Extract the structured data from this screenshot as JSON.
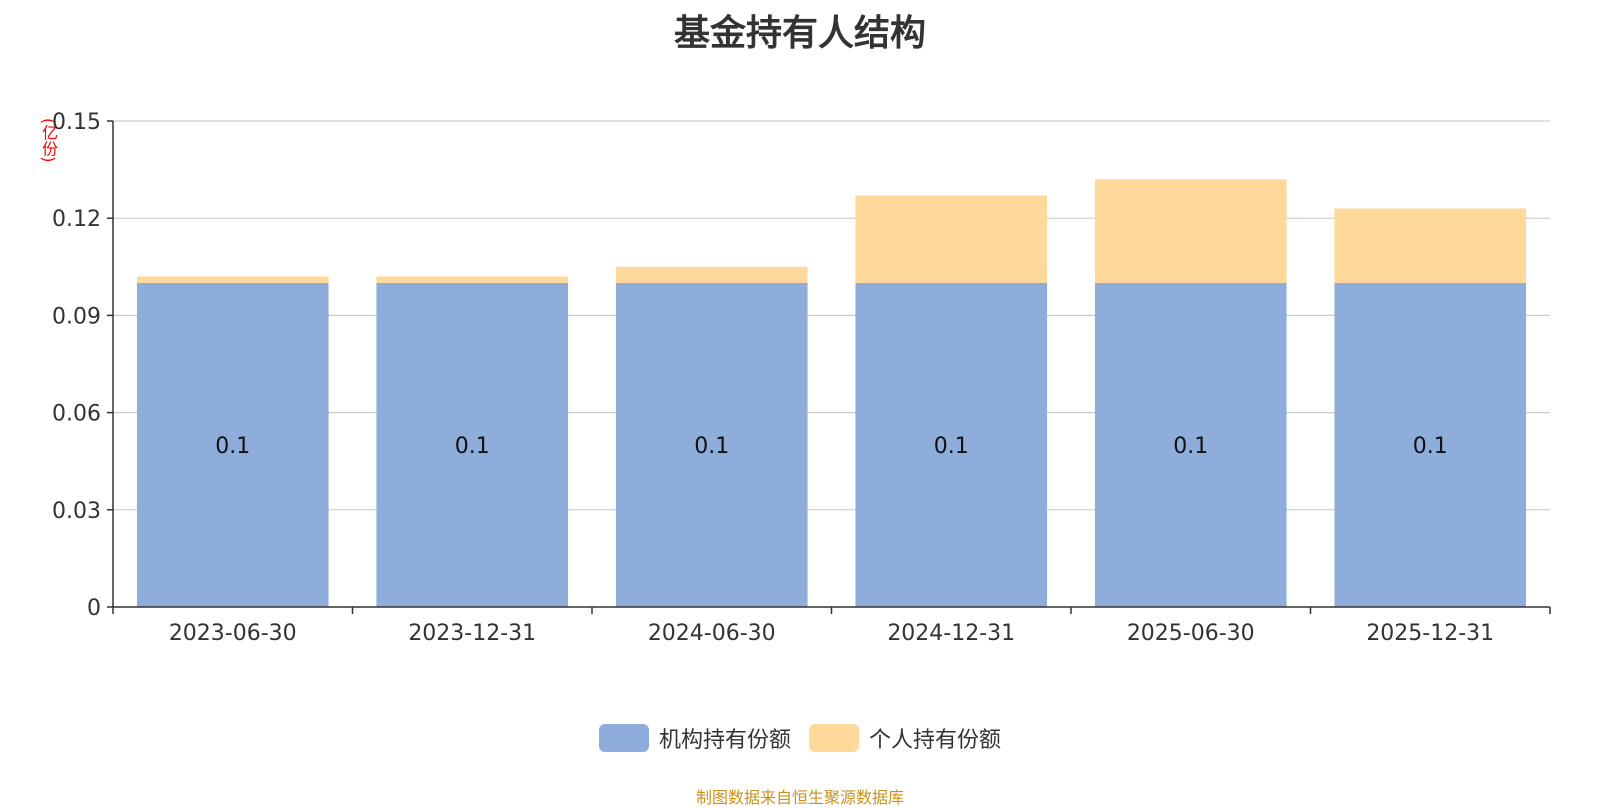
{
  "chart_data": {
    "type": "bar",
    "stacked": true,
    "title": "基金持有人结构",
    "ylabel": "(亿份)",
    "xlabel": "",
    "categories": [
      "2023-06-30",
      "2023-12-31",
      "2024-06-30",
      "2024-12-31",
      "2025-06-30",
      "2025-12-31"
    ],
    "ylim": [
      0,
      0.15
    ],
    "yticks": [
      "0",
      "0.03",
      "0.06",
      "0.09",
      "0.12",
      "0.15"
    ],
    "grid": true,
    "legend_position": "bottom",
    "series": [
      {
        "name": "机构持有份额",
        "color": "#8eadda",
        "values": [
          0.1,
          0.1,
          0.1,
          0.1,
          0.1,
          0.1
        ],
        "labels": [
          "0.1",
          "0.1",
          "0.1",
          "0.1",
          "0.1",
          "0.1"
        ]
      },
      {
        "name": "个人持有份额",
        "color": "#ffd999",
        "values": [
          0.002,
          0.002,
          0.005,
          0.027,
          0.032,
          0.023
        ]
      }
    ],
    "source_note": "制图数据来自恒生聚源数据库"
  }
}
